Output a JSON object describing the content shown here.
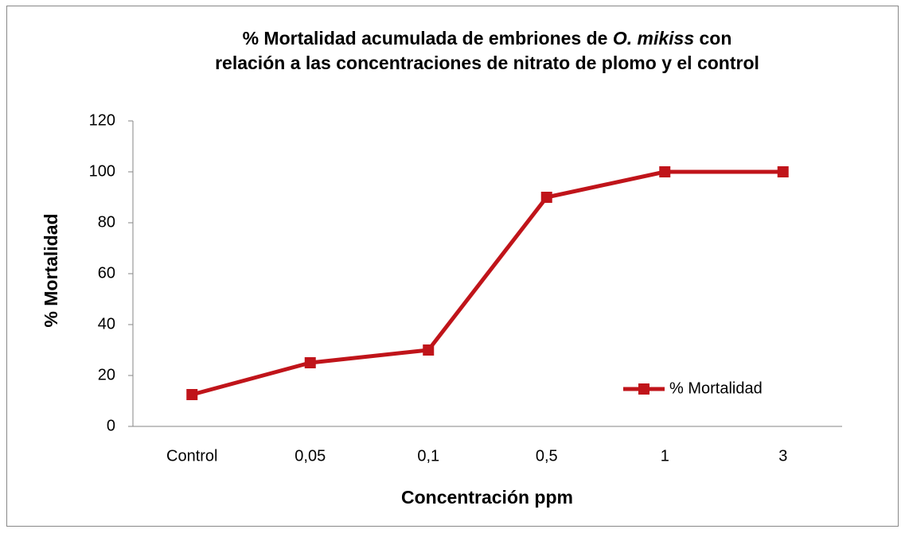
{
  "chart_data": {
    "type": "line",
    "title": [
      [
        "% Mortalidad acumulada de embriones de ",
        "O. mikiss",
        " con"
      ],
      [
        "relación a las concentraciones de nitrato de plomo y el control"
      ]
    ],
    "title_italic": [
      [
        false,
        true,
        false
      ],
      [
        false
      ]
    ],
    "xlabel": "Concentración ppm",
    "ylabel": "% Mortalidad",
    "categories": [
      "Control",
      "0,05",
      "0,1",
      "0,5",
      "1",
      "3"
    ],
    "series": [
      {
        "name": "% Mortalidad",
        "color": "#c0141a",
        "values": [
          12.5,
          25,
          30,
          90,
          100,
          100
        ]
      }
    ],
    "ylim": [
      0,
      120
    ],
    "yticks": [
      0,
      20,
      40,
      60,
      80,
      100,
      120
    ],
    "grid": false,
    "legend": "lower right"
  }
}
